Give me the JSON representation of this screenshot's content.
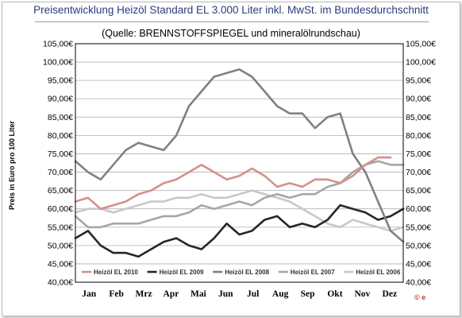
{
  "chart_data": {
    "type": "line",
    "title": "Preisentwicklung  Heizöl  Standard EL 3.000 Liter inkl.  MwSt. im  Bundesdurchschnitt",
    "subtitle": "(Quelle: BRENNSTOFFSPIEGEL  und  mineralölrundschau)",
    "ylabel": "Preis in Euro pro 100 Liter",
    "ylim": [
      40,
      105
    ],
    "yticks": [
      40,
      45,
      50,
      55,
      60,
      65,
      70,
      75,
      80,
      85,
      90,
      95,
      100,
      105
    ],
    "ytick_labels": [
      "40,00€",
      "45,00€",
      "50,00€",
      "55,00€",
      "60,00€",
      "65,00€",
      "70,00€",
      "75,00€",
      "80,00€",
      "85,00€",
      "90,00€",
      "95,00€",
      "100,00€",
      "105,00€"
    ],
    "categories": [
      "Jan",
      "Feb",
      "Mrz",
      "Apr",
      "Mai",
      "Jun",
      "Jul",
      "Aug",
      "Sep",
      "Okt",
      "Nov",
      "Dez"
    ],
    "grid": "horizontal",
    "legend_position": "bottom",
    "x_unit": "week",
    "series": [
      {
        "name": "Heizöl EL 2010",
        "color": "#d4908c",
        "x": [
          0,
          2,
          4,
          6,
          8,
          10,
          12,
          14,
          16,
          18,
          20,
          22,
          24,
          26,
          28,
          30,
          32,
          34,
          36,
          38,
          40,
          42,
          44,
          46,
          48,
          50
        ],
        "values": [
          62,
          63,
          60,
          61,
          62,
          64,
          65,
          67,
          68,
          70,
          72,
          70,
          68,
          69,
          71,
          69,
          66,
          67,
          66,
          68,
          68,
          67,
          69,
          72,
          74,
          74
        ]
      },
      {
        "name": "Heizöl EL 2009",
        "color": "#262626",
        "x": [
          0,
          2,
          4,
          6,
          8,
          10,
          12,
          14,
          16,
          18,
          20,
          22,
          24,
          26,
          28,
          30,
          32,
          34,
          36,
          38,
          40,
          42,
          44,
          46,
          48,
          50,
          52
        ],
        "values": [
          52,
          54,
          50,
          48,
          48,
          47,
          49,
          51,
          52,
          50,
          49,
          52,
          56,
          53,
          54,
          57,
          58,
          55,
          56,
          55,
          57,
          61,
          60,
          59,
          57,
          58,
          60
        ]
      },
      {
        "name": "Heizöl EL 2008",
        "color": "#808080",
        "x": [
          0,
          2,
          4,
          6,
          8,
          10,
          12,
          14,
          16,
          18,
          20,
          22,
          24,
          26,
          28,
          30,
          32,
          34,
          36,
          38,
          40,
          42,
          44,
          46,
          48,
          50,
          52
        ],
        "values": [
          73,
          70,
          68,
          72,
          76,
          78,
          77,
          76,
          80,
          88,
          92,
          96,
          97,
          98,
          96,
          92,
          88,
          86,
          86,
          82,
          85,
          86,
          75,
          70,
          62,
          54,
          51
        ]
      },
      {
        "name": "Heizöl EL 2007",
        "color": "#a6a6a6",
        "x": [
          0,
          2,
          4,
          6,
          8,
          10,
          12,
          14,
          16,
          18,
          20,
          22,
          24,
          26,
          28,
          30,
          32,
          34,
          36,
          38,
          40,
          42,
          44,
          46,
          48,
          50,
          52
        ],
        "values": [
          58,
          55,
          55,
          56,
          56,
          56,
          57,
          58,
          58,
          59,
          61,
          60,
          61,
          62,
          61,
          63,
          64,
          63,
          64,
          64,
          66,
          67,
          70,
          72,
          73,
          72,
          72
        ]
      },
      {
        "name": "Heizöl EL 2006",
        "color": "#c8c8c8",
        "x": [
          0,
          2,
          4,
          6,
          8,
          10,
          12,
          14,
          16,
          18,
          20,
          22,
          24,
          26,
          28,
          30,
          32,
          34,
          36,
          38,
          40,
          42,
          44,
          46,
          48,
          50,
          52
        ],
        "values": [
          59,
          60,
          60,
          59,
          60,
          61,
          62,
          62,
          63,
          63,
          64,
          63,
          63,
          64,
          65,
          64,
          63,
          62,
          60,
          58,
          56,
          55,
          57,
          56,
          55,
          54,
          55
        ]
      }
    ]
  },
  "logo": {
    "text": "© e"
  }
}
